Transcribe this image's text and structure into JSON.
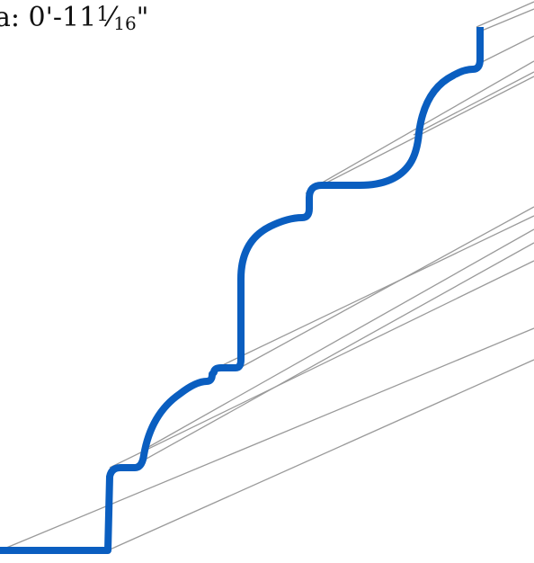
{
  "dimension": {
    "prefix": "a: ",
    "feet": "0'-",
    "whole_inches": "11",
    "numerator": "1",
    "slash": "⁄",
    "denominator": "16",
    "unit": "\""
  },
  "colors": {
    "profile_stroke": "#0a5ec0",
    "edge_lines": "#9a9a9a",
    "text": "#111111",
    "background": "#ffffff"
  },
  "icons": {
    "molding_profile": "crown-molding-profile-icon"
  }
}
